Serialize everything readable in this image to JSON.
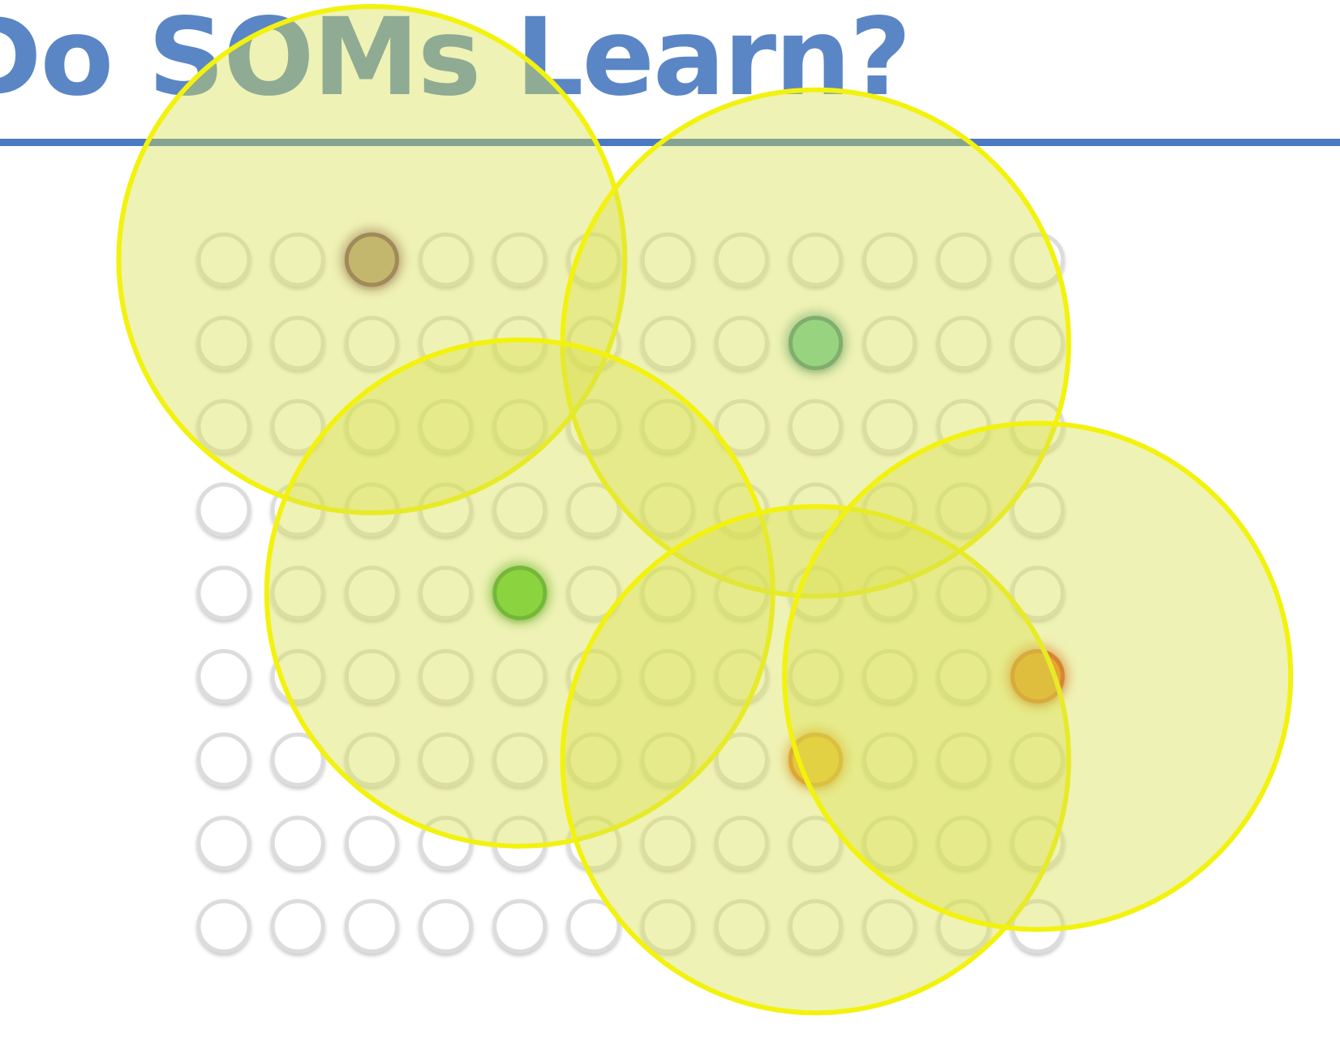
{
  "slide": {
    "title": "Do SOMs Learn?"
  },
  "colors": {
    "title": "#5b86c5",
    "rule": "#4a78c2",
    "node_fill": "#ffffff",
    "node_stroke": "#dcdcdc",
    "neighborhood_fill": "#d8df4e",
    "neighborhood_stroke": "#f2f20e"
  },
  "grid": {
    "rows": 9,
    "cols": 12
  },
  "winning_nodes": [
    {
      "name": "winning-node-brown",
      "row": 0,
      "col": 2,
      "color": "#b39a86",
      "stroke": "#7a4a63"
    },
    {
      "name": "winning-node-teal",
      "row": 1,
      "col": 8,
      "color": "#6acba4",
      "stroke": "#3f8a86"
    },
    {
      "name": "winning-node-green",
      "row": 4,
      "col": 4,
      "color": "#55cc35",
      "stroke": "#2e9b2a"
    },
    {
      "name": "winning-node-orange",
      "row": 5,
      "col": 11,
      "color": "#f07d1c",
      "stroke": "#d9421a"
    },
    {
      "name": "winning-node-amber",
      "row": 6,
      "col": 8,
      "color": "#f2b32e",
      "stroke": "#e07e1f"
    }
  ],
  "neighborhoods": [
    {
      "name": "neighborhood-brown",
      "node": "winning-node-brown"
    },
    {
      "name": "neighborhood-teal",
      "node": "winning-node-teal"
    },
    {
      "name": "neighborhood-green",
      "node": "winning-node-green"
    },
    {
      "name": "neighborhood-amber",
      "node": "winning-node-amber"
    },
    {
      "name": "neighborhood-orange",
      "node": "winning-node-orange"
    }
  ]
}
